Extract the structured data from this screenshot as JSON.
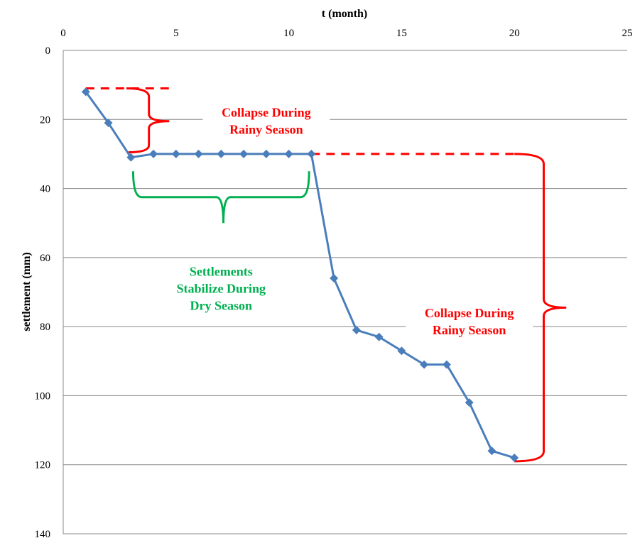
{
  "chart_data": {
    "type": "line",
    "xlabel": "t (month)",
    "ylabel": "settlement (mm)",
    "xlim": [
      0,
      25
    ],
    "ylim": [
      0,
      140
    ],
    "y_inverted": true,
    "x_axis_position": "top",
    "x_ticks": [
      0,
      5,
      10,
      15,
      20,
      25
    ],
    "y_ticks": [
      0,
      20,
      40,
      60,
      80,
      100,
      120,
      140
    ],
    "grid": "horizontal",
    "series": [
      {
        "color": "#4a7ebb",
        "marker": "diamond",
        "x": [
          1,
          2,
          3,
          4,
          5,
          6,
          7,
          8,
          9,
          10,
          11,
          12,
          13,
          14,
          15,
          16,
          17,
          18,
          19,
          20
        ],
        "y": [
          12,
          21,
          31,
          30,
          30,
          30,
          30,
          30,
          30,
          30,
          30,
          66,
          81,
          83,
          87,
          91,
          91,
          102,
          116,
          118
        ]
      }
    ],
    "annotations": [
      {
        "id": "collapse-1",
        "lines": [
          "Collapse During",
          "Rainy Season"
        ],
        "color": "#ff0000",
        "x": 9.0,
        "y": 20.5
      },
      {
        "id": "stabilize",
        "lines": [
          "Settlements",
          "Stabilize During",
          "Dry Season"
        ],
        "color": "#00b050",
        "x": 7.0,
        "y": 69.0
      },
      {
        "id": "collapse-2",
        "lines": [
          "Collapse During",
          "Rainy Season"
        ],
        "color": "#ff0000",
        "x": 18.0,
        "y": 78.5
      }
    ]
  }
}
